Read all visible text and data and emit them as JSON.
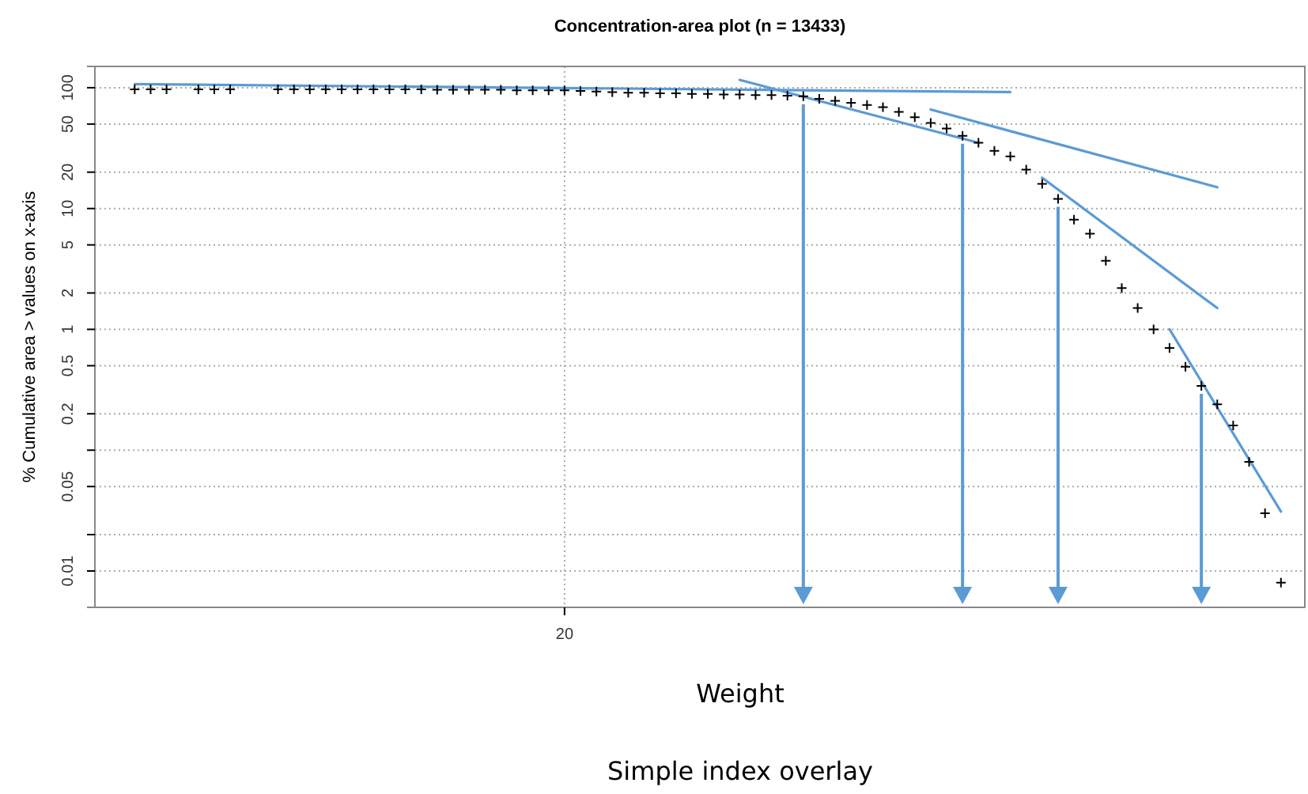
{
  "chart_data": {
    "type": "scatter",
    "title": "Concentration-area plot (n = 13433)",
    "xlabel": "Weight",
    "ylabel": "% Cumulative area > values on x-axis",
    "annotations": [
      "Simple index overlay"
    ],
    "log": "y",
    "grid": true,
    "ylim": [
      0.005,
      150
    ],
    "yticks": [
      0.01,
      {
        "value": 0.02,
        "label": null
      },
      0.05,
      {
        "value": 0.1,
        "label": null
      },
      0.2,
      0.5,
      1,
      2,
      5,
      10,
      20,
      50,
      100
    ],
    "categories": [
      null,
      null,
      null,
      null,
      null,
      null,
      null,
      null,
      null,
      null,
      null,
      null,
      null,
      null,
      null,
      null,
      null,
      null,
      null,
      null,
      null,
      null,
      null,
      null,
      null,
      null,
      null,
      null,
      null,
      "20",
      null,
      null,
      null,
      null,
      null,
      null,
      null,
      null,
      null,
      null,
      null,
      null,
      null,
      null,
      null,
      null,
      null,
      null,
      null,
      null,
      null,
      null,
      null,
      null,
      null,
      null,
      null,
      null,
      null,
      null,
      null,
      null,
      null,
      null,
      null,
      null,
      null,
      null,
      null,
      null,
      null,
      null,
      null,
      null,
      null,
      null
    ],
    "series": [
      {
        "marker": "cross",
        "color": "#000000",
        "values": [
          null,
          null,
          97,
          97,
          97,
          null,
          97,
          97,
          97,
          null,
          null,
          97,
          97,
          97,
          97,
          97,
          97,
          97,
          97,
          97,
          97,
          96,
          96,
          96,
          96,
          96,
          95,
          95,
          95,
          95,
          94,
          93,
          92,
          91,
          91,
          90,
          90,
          89,
          89,
          88,
          88,
          87,
          87,
          86,
          85,
          81,
          78,
          75,
          72,
          69,
          63,
          57,
          51,
          46,
          40,
          35,
          30,
          27,
          21,
          16,
          12,
          8.1,
          6.2,
          3.7,
          2.2,
          1.5,
          1.0,
          0.7,
          0.49,
          0.34,
          0.24,
          0.16,
          0.08,
          0.03,
          0.008,
          null
        ]
      },
      {
        "type": "line",
        "color": "#5b9bd5",
        "values": [
          null,
          null,
          107,
          null,
          null,
          null,
          null,
          null,
          null,
          null,
          null,
          null,
          null,
          null,
          null,
          null,
          null,
          null,
          null,
          null,
          null,
          null,
          null,
          null,
          null,
          null,
          null,
          null,
          null,
          null,
          null,
          null,
          null,
          null,
          null,
          null,
          null,
          null,
          null,
          null,
          null,
          null,
          null,
          null,
          null,
          null,
          null,
          null,
          null,
          null,
          null,
          null,
          null,
          null,
          null,
          null,
          null,
          92,
          null,
          null,
          null,
          null,
          null,
          null,
          null,
          null,
          null,
          null,
          null,
          null,
          null,
          null,
          null,
          null,
          null,
          null
        ]
      },
      {
        "type": "line",
        "color": "#5b9bd5",
        "values": [
          null,
          null,
          null,
          null,
          null,
          null,
          null,
          null,
          null,
          null,
          null,
          null,
          null,
          null,
          null,
          null,
          null,
          null,
          null,
          null,
          null,
          null,
          null,
          null,
          null,
          null,
          null,
          null,
          null,
          null,
          null,
          null,
          null,
          null,
          null,
          null,
          null,
          null,
          null,
          null,
          116,
          null,
          null,
          null,
          null,
          null,
          null,
          null,
          null,
          null,
          null,
          null,
          null,
          null,
          null,
          35,
          null,
          null,
          null,
          null,
          null,
          null,
          null,
          null,
          null,
          null,
          null,
          null,
          null,
          null,
          null,
          null,
          null,
          null,
          null,
          null
        ]
      },
      {
        "type": "line",
        "color": "#5b9bd5",
        "values": [
          null,
          null,
          null,
          null,
          null,
          null,
          null,
          null,
          null,
          null,
          null,
          null,
          null,
          null,
          null,
          null,
          null,
          null,
          null,
          null,
          null,
          null,
          null,
          null,
          null,
          null,
          null,
          null,
          null,
          null,
          null,
          null,
          null,
          null,
          null,
          null,
          null,
          null,
          null,
          null,
          null,
          null,
          null,
          null,
          null,
          null,
          null,
          null,
          null,
          null,
          null,
          null,
          66,
          null,
          null,
          null,
          null,
          null,
          null,
          null,
          null,
          null,
          null,
          null,
          null,
          null,
          null,
          null,
          null,
          null,
          15,
          null,
          null,
          null,
          null,
          null
        ]
      },
      {
        "type": "line",
        "color": "#5b9bd5",
        "values": [
          null,
          null,
          null,
          null,
          null,
          null,
          null,
          null,
          null,
          null,
          null,
          null,
          null,
          null,
          null,
          null,
          null,
          null,
          null,
          null,
          null,
          null,
          null,
          null,
          null,
          null,
          null,
          null,
          null,
          null,
          null,
          null,
          null,
          null,
          null,
          null,
          null,
          null,
          null,
          null,
          null,
          null,
          null,
          null,
          null,
          null,
          null,
          null,
          null,
          null,
          null,
          null,
          null,
          null,
          null,
          null,
          null,
          null,
          null,
          18,
          null,
          null,
          null,
          null,
          null,
          null,
          null,
          null,
          null,
          null,
          1.5,
          null,
          null,
          null,
          null,
          null
        ]
      },
      {
        "type": "line",
        "color": "#5b9bd5",
        "values": [
          null,
          null,
          null,
          null,
          null,
          null,
          null,
          null,
          null,
          null,
          null,
          null,
          null,
          null,
          null,
          null,
          null,
          null,
          null,
          null,
          null,
          null,
          null,
          null,
          null,
          null,
          null,
          null,
          null,
          null,
          null,
          null,
          null,
          null,
          null,
          null,
          null,
          null,
          null,
          null,
          null,
          null,
          null,
          null,
          null,
          null,
          null,
          null,
          null,
          null,
          null,
          null,
          null,
          null,
          null,
          null,
          null,
          null,
          null,
          null,
          null,
          null,
          null,
          null,
          null,
          null,
          null,
          1.0,
          null,
          null,
          null,
          null,
          null,
          null,
          0.031,
          null
        ]
      }
    ]
  }
}
